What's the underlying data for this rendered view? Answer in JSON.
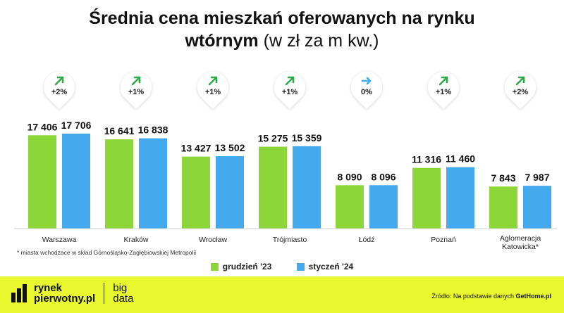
{
  "title": {
    "line1": "Średnia cena mieszkań oferowanych na rynku",
    "line2_bold": "wtórnym",
    "line2_rest": " (w zł za m kw.)"
  },
  "footnote": "* miasta wchodzace w skład Górnośląsko-Zagłębiowskiej Metropolii",
  "source": {
    "prefix": "Źródło: Na podstawie danych ",
    "bold": "GetHome.pl"
  },
  "brand": {
    "line1": "rynek",
    "line2": "pierwotny.pl",
    "sub1": "big",
    "sub2": "data"
  },
  "colors": {
    "grudzien": "#8cd63a",
    "styczen": "#45a9ee",
    "footer": "#e9f82e",
    "arrow_up": "#2ea84a",
    "arrow_flat": "#45a9ee"
  },
  "chart_data": {
    "type": "bar",
    "categories": [
      "Warszawa",
      "Kraków",
      "Wrocław",
      "Trójmiasto",
      "Łódź",
      "Poznań",
      "Aglomeracja Katowicka*"
    ],
    "series": [
      {
        "name": "grudzień '23",
        "values": [
          17406,
          16641,
          13427,
          15275,
          8090,
          11316,
          7843
        ],
        "labels": [
          "17 406",
          "16 641",
          "13 427",
          "15 275",
          "8 090",
          "11 316",
          "7 843"
        ]
      },
      {
        "name": "styczeń '24",
        "values": [
          17706,
          16838,
          13502,
          15359,
          8096,
          11460,
          7987
        ],
        "labels": [
          "17 706",
          "16 838",
          "13 502",
          "15 359",
          "8 096",
          "11 460",
          "7 987"
        ]
      }
    ],
    "changes": [
      "+2%",
      "+1%",
      "+1%",
      "+1%",
      "0%",
      "+1%",
      "+2%"
    ],
    "change_direction": [
      "up",
      "up",
      "up",
      "up",
      "flat",
      "up",
      "up"
    ],
    "ylim": [
      0,
      17706
    ],
    "legend_position": "bottom-center",
    "grid": false
  }
}
